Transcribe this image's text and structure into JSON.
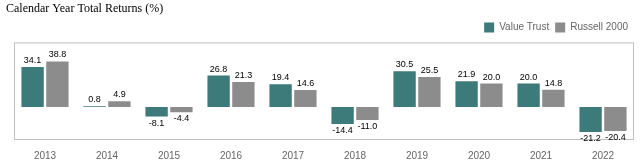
{
  "chart_data": {
    "type": "bar",
    "title": "Calendar Year Total Returns (%)",
    "categories": [
      "2013",
      "2014",
      "2015",
      "2016",
      "2017",
      "2018",
      "2019",
      "2020",
      "2021",
      "2022"
    ],
    "series": [
      {
        "name": "Value Trust",
        "color": "#3d7a7a",
        "values": [
          34.1,
          0.8,
          -8.1,
          26.8,
          19.4,
          -14.4,
          30.5,
          21.9,
          20.0,
          -21.2
        ],
        "value_labels": [
          "34.1",
          "0.8",
          "-8.1",
          "26.8",
          "19.4",
          "-14.4",
          "30.5",
          "21.9",
          "20.0",
          "-21.2"
        ]
      },
      {
        "name": "Russell 2000",
        "color": "#8c8c8c",
        "values": [
          38.8,
          4.9,
          -4.4,
          21.3,
          14.6,
          -11.0,
          25.5,
          20.0,
          14.8,
          -20.4
        ],
        "value_labels": [
          "38.8",
          "4.9",
          "-4.4",
          "21.3",
          "14.6",
          "-11.0",
          "25.5",
          "20.0",
          "14.8",
          "-20.4"
        ]
      }
    ],
    "ylim": [
      -28,
      55
    ],
    "grid": false,
    "legend": "upper right",
    "data_labels": true,
    "tick_labels": "x"
  }
}
